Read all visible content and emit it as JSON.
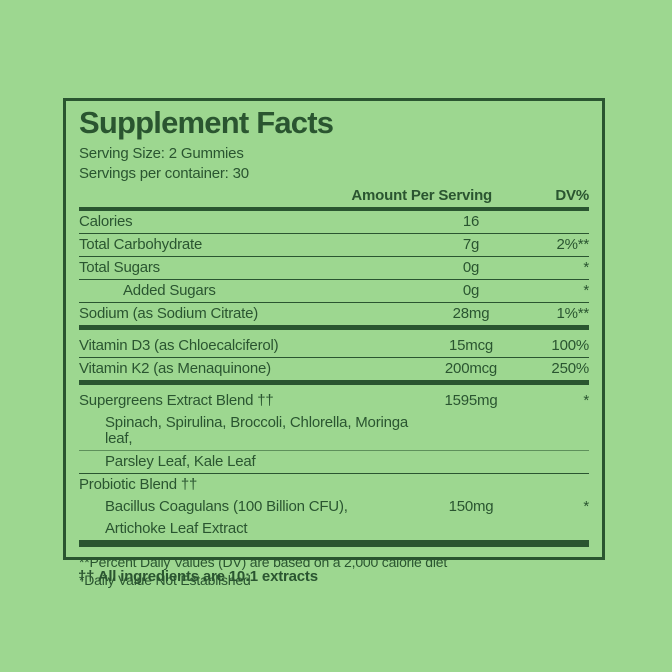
{
  "colors": {
    "background": "#9dd790",
    "ink": "#2a5530"
  },
  "panel": {
    "title": "Supplement Facts",
    "serving_size": "Serving Size: 2 Gummies",
    "servings_per_container": "Servings per container: 30",
    "columns": {
      "amount": "Amount Per Serving",
      "dv": "DV%"
    },
    "rows": [
      {
        "label": "Calories",
        "amount": "16",
        "dv": "",
        "rule": "thin"
      },
      {
        "label": "Total Carbohydrate",
        "amount": "7g",
        "dv": "2%**",
        "rule": "thin"
      },
      {
        "label": "Total Sugars",
        "amount": "0g",
        "dv": "*",
        "rule": "thin"
      },
      {
        "label": "Added Sugars",
        "amount": "0g",
        "dv": "*",
        "indent": 2,
        "rule": "thin"
      },
      {
        "label": "Sodium (as Sodium Citrate)",
        "amount": "28mg",
        "dv": "1%**",
        "rule": "thick"
      },
      {
        "label": "Vitamin D3 (as Chloecalciferol)",
        "amount": "15mcg",
        "dv": "100%",
        "rule": "thin",
        "gap_top": true
      },
      {
        "label": "Vitamin K2 (as Menaquinone)",
        "amount": "200mcg",
        "dv": "250%",
        "rule": "thick"
      },
      {
        "label": "Supergreens Extract Blend ††",
        "amount": "1595mg",
        "dv": "*",
        "rule": "none",
        "gap_top": true
      },
      {
        "label": "Spinach, Spirulina, Broccoli, Chlorella, Moringa leaf,",
        "amount": "",
        "dv": "",
        "indent": 1,
        "rule": "faint"
      },
      {
        "label": "Parsley Leaf, Kale Leaf",
        "amount": "",
        "dv": "",
        "indent": 1,
        "rule": "thin"
      },
      {
        "label": "Probiotic Blend ††",
        "amount": "",
        "dv": "",
        "rule": "none"
      },
      {
        "label": "Bacillus Coagulans (100 Billion CFU),",
        "amount": "150mg",
        "dv": "*",
        "indent": 1,
        "rule": "none"
      },
      {
        "label": "Artichoke Leaf Extract",
        "amount": "",
        "dv": "",
        "indent": 1,
        "rule": "thick-lg"
      }
    ],
    "footnotes": [
      "**Percent Daily Values (DV) are based on a 2,000 calorie diet",
      "*Daily Value Not Established"
    ]
  },
  "footer_note": "†† All ingredients are 10:1 extracts"
}
